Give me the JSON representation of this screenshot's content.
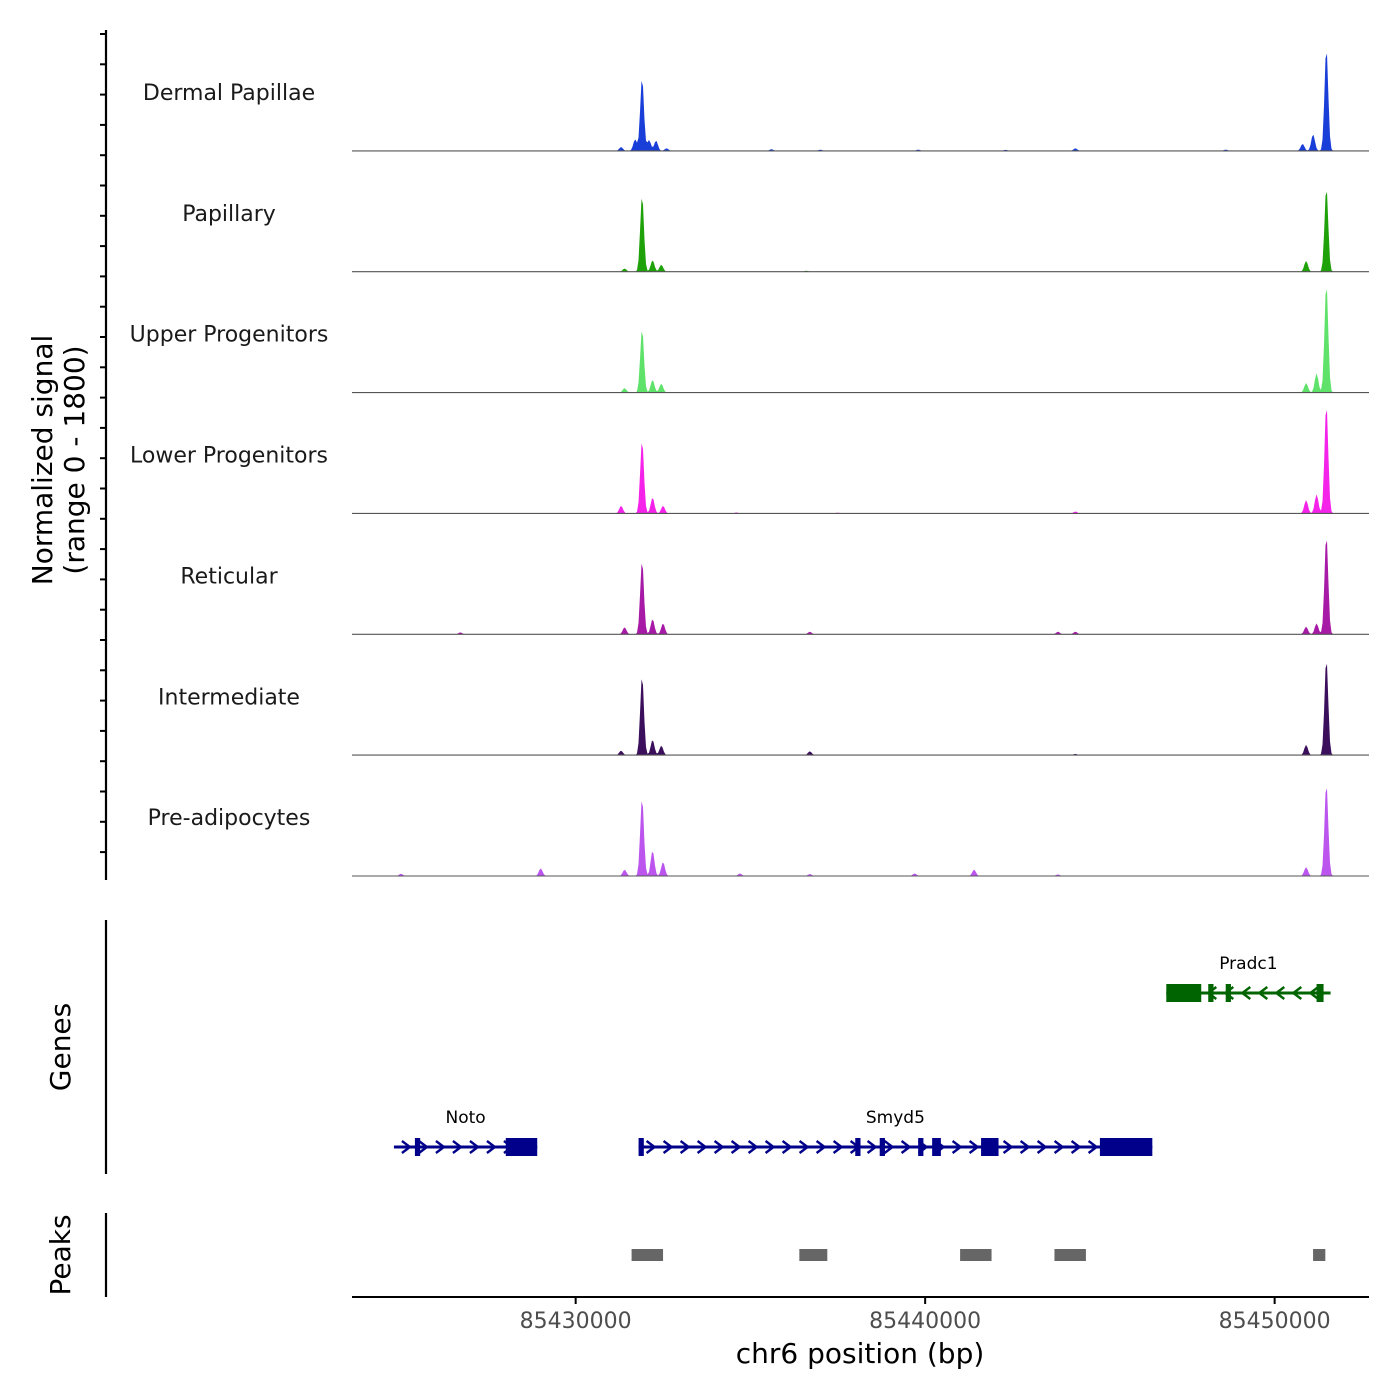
{
  "chart_data": {
    "type": "area",
    "title": "",
    "ylabel_line1": "Normalized signal",
    "ylabel_line2": "(range 0 - 1800)",
    "ylim": [
      0,
      1800
    ],
    "xlabel": "chr6 position (bp)",
    "xlim": [
      85423600,
      85452700
    ],
    "xticks": [
      85430000,
      85440000,
      85450000
    ],
    "xtick_labels": [
      "85430000",
      "85440000",
      "85450000"
    ],
    "genes_label": "Genes",
    "peaks_label": "Peaks",
    "tracks": [
      {
        "name": "Dermal Papillae",
        "color": "#1a3fd9",
        "peaks": [
          [
            85431300,
            60
          ],
          [
            85431700,
            180
          ],
          [
            85431900,
            1150
          ],
          [
            85432100,
            170
          ],
          [
            85432300,
            160
          ],
          [
            85432600,
            40
          ],
          [
            85435600,
            25
          ],
          [
            85437000,
            18
          ],
          [
            85439800,
            20
          ],
          [
            85442300,
            15
          ],
          [
            85444300,
            40
          ],
          [
            85448600,
            20
          ],
          [
            85450800,
            110
          ],
          [
            85451100,
            260
          ],
          [
            85451480,
            1620
          ]
        ]
      },
      {
        "name": "Papillary",
        "color": "#1fa10a",
        "peaks": [
          [
            85431400,
            50
          ],
          [
            85431900,
            1200
          ],
          [
            85432200,
            180
          ],
          [
            85432450,
            110
          ],
          [
            85436600,
            15
          ],
          [
            85450900,
            170
          ],
          [
            85451480,
            1330
          ]
        ]
      },
      {
        "name": "Upper Progenitors",
        "color": "#5fe26a",
        "peaks": [
          [
            85431400,
            70
          ],
          [
            85431900,
            1000
          ],
          [
            85432200,
            200
          ],
          [
            85432450,
            140
          ],
          [
            85450900,
            150
          ],
          [
            85451200,
            300
          ],
          [
            85451480,
            1720
          ]
        ]
      },
      {
        "name": "Lower Progenitors",
        "color": "#f523ea",
        "peaks": [
          [
            85431300,
            120
          ],
          [
            85431900,
            1150
          ],
          [
            85432200,
            250
          ],
          [
            85432500,
            120
          ],
          [
            85434600,
            15
          ],
          [
            85437500,
            12
          ],
          [
            85444300,
            30
          ],
          [
            85450900,
            210
          ],
          [
            85451200,
            300
          ],
          [
            85451480,
            1720
          ]
        ]
      },
      {
        "name": "Reticular",
        "color": "#a61aa6",
        "peaks": [
          [
            85426700,
            30
          ],
          [
            85431400,
            110
          ],
          [
            85431900,
            1160
          ],
          [
            85432200,
            240
          ],
          [
            85432500,
            170
          ],
          [
            85436700,
            40
          ],
          [
            85443800,
            40
          ],
          [
            85444300,
            40
          ],
          [
            85450900,
            120
          ],
          [
            85451200,
            170
          ],
          [
            85451480,
            1560
          ]
        ]
      },
      {
        "name": "Intermediate",
        "color": "#3b0f5c",
        "peaks": [
          [
            85431300,
            70
          ],
          [
            85431900,
            1250
          ],
          [
            85432200,
            240
          ],
          [
            85432450,
            150
          ],
          [
            85436700,
            60
          ],
          [
            85444300,
            20
          ],
          [
            85450900,
            160
          ],
          [
            85451480,
            1520
          ]
        ]
      },
      {
        "name": "Pre-adipocytes",
        "color": "#bb55ee",
        "peaks": [
          [
            85425000,
            35
          ],
          [
            85429000,
            120
          ],
          [
            85431400,
            100
          ],
          [
            85431900,
            1230
          ],
          [
            85432200,
            400
          ],
          [
            85432500,
            220
          ],
          [
            85434700,
            40
          ],
          [
            85436700,
            30
          ],
          [
            85439700,
            40
          ],
          [
            85441400,
            100
          ],
          [
            85443800,
            25
          ],
          [
            85450900,
            140
          ],
          [
            85451480,
            1460
          ]
        ]
      }
    ],
    "genes": [
      {
        "name": "Noto",
        "strand": "+",
        "color": "#00008b",
        "row": 2,
        "start": 85424800,
        "end": 85428900,
        "exons": [
          [
            85425400,
            85425550
          ],
          [
            85428000,
            85428900
          ]
        ]
      },
      {
        "name": "Smyd5",
        "strand": "+",
        "color": "#00008b",
        "row": 2,
        "start": 85431800,
        "end": 85446500,
        "exons": [
          [
            85431800,
            85431950
          ],
          [
            85438000,
            85438150
          ],
          [
            85438700,
            85438850
          ],
          [
            85439800,
            85439950
          ],
          [
            85440200,
            85440450
          ],
          [
            85441600,
            85442100
          ],
          [
            85445000,
            85446500
          ]
        ]
      },
      {
        "name": "Pradc1",
        "strand": "-",
        "color": "#006400",
        "row": 1,
        "start": 85446900,
        "end": 85451600,
        "exons": [
          [
            85446900,
            85447900
          ],
          [
            85448100,
            85448250
          ],
          [
            85448600,
            85448750
          ],
          [
            85451200,
            85451400
          ]
        ]
      }
    ],
    "peak_regions": [
      [
        85431600,
        85432500
      ],
      [
        85436400,
        85437200
      ],
      [
        85441000,
        85441900
      ],
      [
        85443700,
        85444600
      ],
      [
        85451100,
        85451450
      ]
    ],
    "peak_color": "#666666"
  }
}
